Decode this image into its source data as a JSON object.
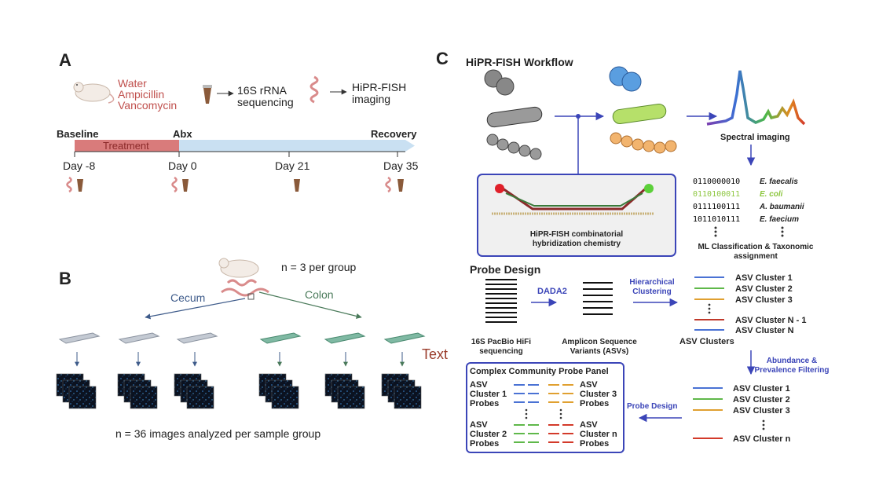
{
  "panel_a": {
    "letter": "A",
    "treatments": [
      "Water",
      "Ampicillin",
      "Vancomycin"
    ],
    "step1": [
      "16S rRNA",
      "sequencing"
    ],
    "step2": [
      "HiPR-FISH",
      "imaging"
    ],
    "timeline": {
      "start": "Baseline",
      "mid": "Abx",
      "end": "Recovery",
      "treatment": "Treatment"
    },
    "days": [
      "Day -8",
      "Day 0",
      "Day 21",
      "Day 35"
    ],
    "colors": {
      "treatment": "#d97b7b",
      "recovery": "#c9e0f2",
      "text_red": "#c0504d"
    }
  },
  "panel_b": {
    "letter": "B",
    "n_group": "n = 3 per group",
    "cecum": "Cecum",
    "colon": "Colon",
    "text_label": "Text",
    "n_images": "n = 36 images analyzed per sample group",
    "colors": {
      "cecum": "#3e5b8a",
      "colon": "#4a7a5a",
      "text": "#9a3b2a"
    }
  },
  "panel_c": {
    "letter": "C",
    "workflow_title": "HiPR-FISH Workflow",
    "spectral": "Spectral imaging",
    "chem": [
      "HiPR-FISH combinatorial",
      "hybridization chemistry"
    ],
    "barcodes": [
      {
        "code": "0110000010",
        "name": "E. faecalis",
        "color": "#222222"
      },
      {
        "code": "0110100011",
        "name": "E. coli",
        "color": "#8dc63f"
      },
      {
        "code": "0111100111",
        "name": "A. baumanii",
        "color": "#222222"
      },
      {
        "code": "1011010111",
        "name": "E. faecium",
        "color": "#222222"
      }
    ],
    "ml": [
      "ML Classification & Taxonomic",
      "assignment"
    ],
    "probe_design_title": "Probe Design",
    "dada2": "DADA2",
    "hier": [
      "Hierarchical",
      "Clustering"
    ],
    "pacbio": [
      "16S PacBio HiFi",
      "sequencing"
    ],
    "asv_variants": [
      "Amplicon Sequence",
      "Variants (ASVs)"
    ],
    "asv_clusters_label": "ASV Clusters",
    "clusters_top": [
      "ASV Cluster 1",
      "ASV Cluster 2",
      "ASV Cluster 3",
      "ASV Cluster N - 1",
      "ASV Cluster N"
    ],
    "filter": [
      "Abundance  &",
      "Prevalence Filtering"
    ],
    "clusters_bottom": [
      "ASV Cluster 1",
      "ASV Cluster 2",
      "ASV Cluster 3",
      "ASV Cluster n"
    ],
    "probe_design_arrow": "Probe Design",
    "panel_title": "Complex Community Probe Panel",
    "probe_groups": [
      [
        "ASV",
        "Cluster 1",
        "Probes"
      ],
      [
        "ASV",
        "Cluster 3",
        "Probes"
      ],
      [
        "ASV",
        "Cluster 2",
        "Probes"
      ],
      [
        "ASV",
        "Cluster n",
        "Probes"
      ]
    ],
    "colors": {
      "arrow": "#3b45b8",
      "blue": "#4a72d4",
      "green": "#5fb84a",
      "orange": "#e0a030",
      "red": "#d33a2a",
      "darkred": "#c0392b"
    }
  }
}
